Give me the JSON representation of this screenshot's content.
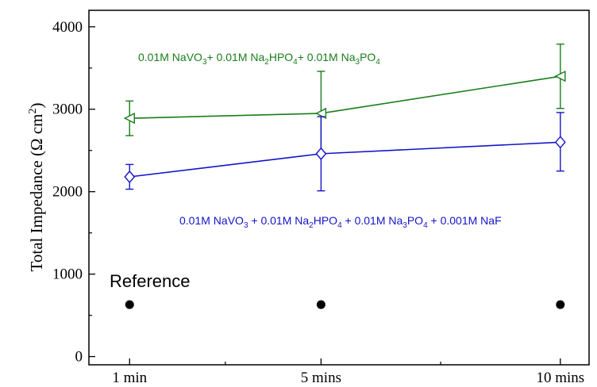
{
  "chart_data": {
    "type": "line",
    "categories": [
      "1 min",
      "5 mins",
      "10 mins"
    ],
    "x": [
      1,
      5,
      10
    ],
    "ylabel_main": "Total Impedance (Ω cm",
    "ylabel_sup": "2",
    "ylabel_close": ")",
    "ylim": [
      -100,
      4200
    ],
    "yticks": [
      "0",
      "1000",
      "2000",
      "3000",
      "4000"
    ],
    "ytick_values": [
      0,
      1000,
      2000,
      3000,
      4000
    ],
    "grid": false,
    "series": [
      {
        "key": "green",
        "color": "#1a7d1a",
        "marker": "left-triangle",
        "values": [
          2890,
          2950,
          3400
        ],
        "err_low": [
          2680,
          2480,
          3010
        ],
        "err_high": [
          3100,
          3460,
          3790
        ],
        "label_parts": [
          {
            "t": "0.01M NaVO",
            "sub": false
          },
          {
            "t": "3",
            "sub": true
          },
          {
            "t": "+ 0.01M Na",
            "sub": false
          },
          {
            "t": "2",
            "sub": true
          },
          {
            "t": "HPO",
            "sub": false
          },
          {
            "t": "4",
            "sub": true
          },
          {
            "t": "+ 0.01M Na",
            "sub": false
          },
          {
            "t": "3",
            "sub": true
          },
          {
            "t": "PO",
            "sub": false
          },
          {
            "t": "4",
            "sub": true
          }
        ]
      },
      {
        "key": "blue",
        "color": "#1414c8",
        "marker": "diamond",
        "values": [
          2180,
          2460,
          2600
        ],
        "err_low": [
          2030,
          2010,
          2250
        ],
        "err_high": [
          2330,
          2910,
          2960
        ],
        "label_parts": [
          {
            "t": "0.01M NaVO",
            "sub": false
          },
          {
            "t": "3",
            "sub": true
          },
          {
            "t": " + 0.01M Na",
            "sub": false
          },
          {
            "t": "2",
            "sub": true
          },
          {
            "t": "HPO",
            "sub": false
          },
          {
            "t": "4",
            "sub": true
          },
          {
            "t": " + 0.01M Na",
            "sub": false
          },
          {
            "t": "3",
            "sub": true
          },
          {
            "t": "PO",
            "sub": false
          },
          {
            "t": "4",
            "sub": true
          },
          {
            "t": " + 0.001M NaF",
            "sub": false
          }
        ]
      },
      {
        "key": "reference",
        "color": "#000000",
        "marker": "circle",
        "values": [
          630,
          630,
          630
        ],
        "name": "Reference"
      }
    ]
  }
}
